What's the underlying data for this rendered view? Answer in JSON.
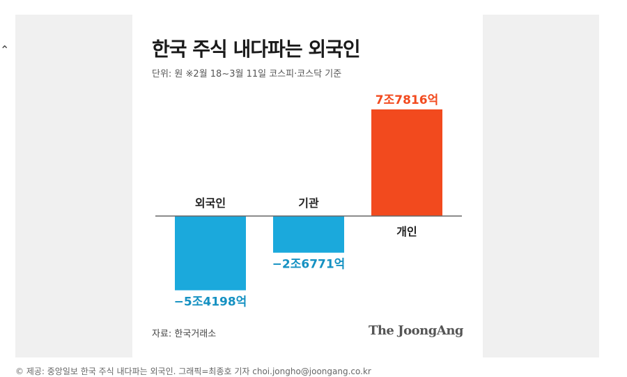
{
  "corner_mark": "⌃",
  "chart_data": {
    "type": "bar",
    "title": "한국 주식 내다파는 외국인",
    "subtitle": "단위: 원  ※2월 18~3월 11일 코스피·코스닥 기준",
    "categories": [
      "외국인",
      "기관",
      "개인"
    ],
    "values": [
      -54198,
      -26771,
      77816
    ],
    "value_unit": "억 원",
    "data_labels": [
      "−5조4198억",
      "−2조6771억",
      "7조7816억"
    ],
    "colors": [
      "#1ba9dc",
      "#1ba9dc",
      "#f24a1e"
    ],
    "label_colors": [
      "#1591c2",
      "#1591c2",
      "#f24a1e"
    ],
    "ylim": [
      -60000,
      90000
    ],
    "grid": false
  },
  "source": "자료: 한국거래소",
  "brand": "The JoongAng",
  "caption": "© 제공: 중앙일보   한국 주식 내다파는 외국인. 그래픽=최종호 기자 choi.jongho@joongang.co.kr"
}
